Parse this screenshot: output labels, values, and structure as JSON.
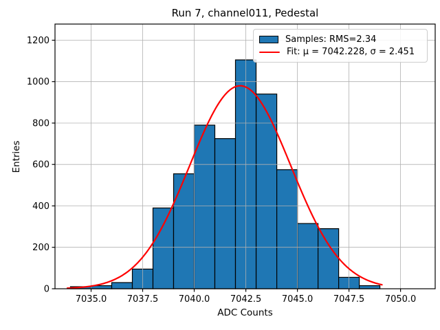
{
  "chart_data": {
    "type": "bar",
    "subtype": "histogram-with-gaussian-fit",
    "title": "Run 7, channel011, Pedestal",
    "xlabel": "ADC Counts",
    "ylabel": "Entries",
    "bin_start": 7034,
    "bin_width": 1,
    "categories": [
      "7034-7035",
      "7035-7036",
      "7036-7037",
      "7037-7038",
      "7038-7039",
      "7039-7040",
      "7040-7041",
      "7041-7042",
      "7042-7043",
      "7043-7044",
      "7044-7045",
      "7045-7046",
      "7046-7047",
      "7047-7048",
      "7048-7049"
    ],
    "counts": [
      10,
      15,
      30,
      95,
      390,
      555,
      790,
      725,
      1105,
      940,
      575,
      315,
      290,
      55,
      15
    ],
    "fit": {
      "type": "gaussian",
      "mu": 7042.228,
      "sigma": 2.451,
      "amplitude": 980,
      "x_start": 7033.85,
      "x_end": 7049.1
    },
    "xlim": [
      7033.25,
      7051.68
    ],
    "ylim": [
      0,
      1278
    ],
    "xticks": [
      {
        "v": 7035.0,
        "label": "7035.0"
      },
      {
        "v": 7037.5,
        "label": "7037.5"
      },
      {
        "v": 7040.0,
        "label": "7040.0"
      },
      {
        "v": 7042.5,
        "label": "7042.5"
      },
      {
        "v": 7045.0,
        "label": "7045.0"
      },
      {
        "v": 7047.5,
        "label": "7047.5"
      },
      {
        "v": 7050.0,
        "label": "7050.0"
      }
    ],
    "yticks": [
      {
        "v": 0,
        "label": "0"
      },
      {
        "v": 200,
        "label": "200"
      },
      {
        "v": 400,
        "label": "400"
      },
      {
        "v": 600,
        "label": "600"
      },
      {
        "v": 800,
        "label": "800"
      },
      {
        "v": 1000,
        "label": "1000"
      },
      {
        "v": 1200,
        "label": "1200"
      }
    ],
    "grid": true,
    "legend": {
      "position": "upper right",
      "items": [
        {
          "label": "Samples: RMS=2.34",
          "swatch": "patch",
          "color": "#1f77b4"
        },
        {
          "label": "Fit: μ = 7042.228, σ = 2.451",
          "swatch": "line",
          "color": "#ff0000"
        }
      ]
    },
    "colors": {
      "bar_fill": "#1f77b4",
      "bar_edge": "#000000",
      "fit_line": "#ff0000",
      "grid": "#b0b0b0",
      "spine": "#000000",
      "background": "#ffffff"
    }
  }
}
